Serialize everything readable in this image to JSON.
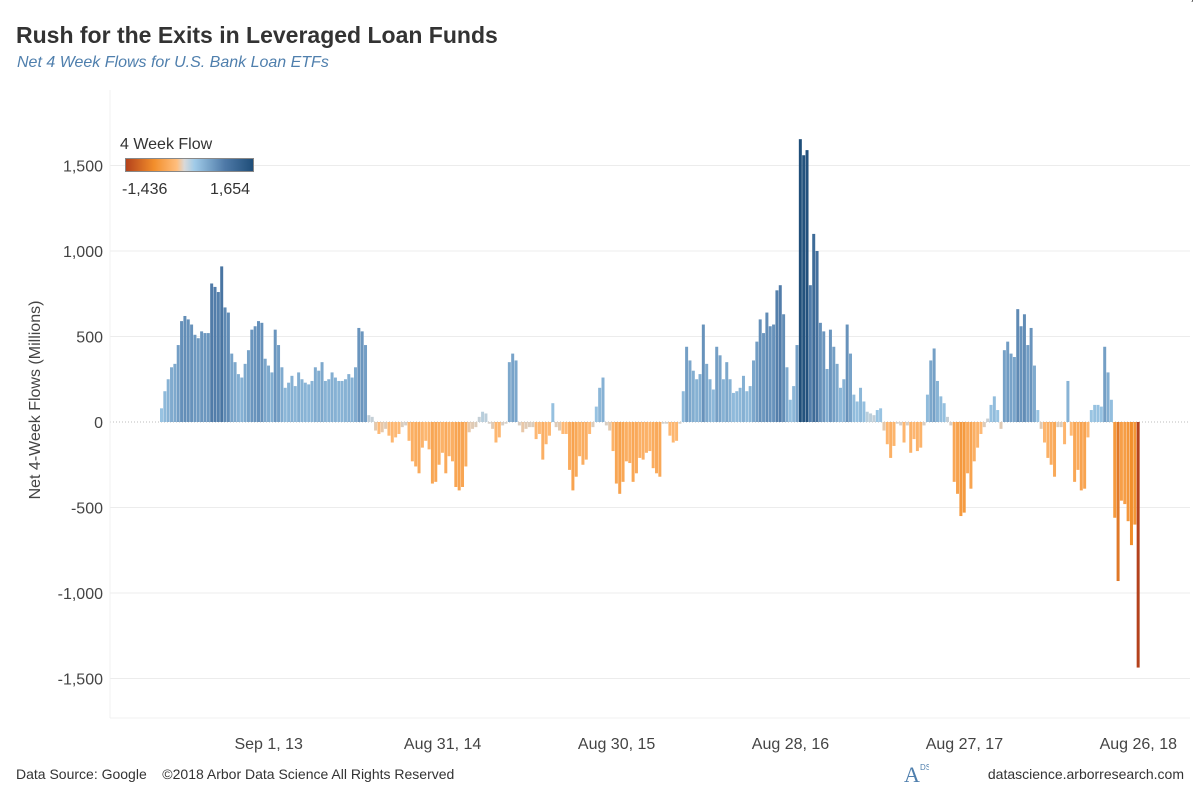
{
  "title": "Rush for the Exits in Leveraged Loan Funds",
  "subtitle": "Net 4 Week Flows for U.S. Bank Loan ETFs",
  "footer": {
    "source": "Data Source: Google    ©2018 Arbor Data Science All Rights Reserved",
    "website": "datascience.arborresearch.com",
    "logo_letters": "A",
    "logo_superscript": "DS"
  },
  "legend": {
    "title": "4 Week Flow",
    "min_label": "-1,436",
    "max_label": "1,654",
    "colors": [
      "#b4421c",
      "#f28e2b",
      "#ffbe7d",
      "#d9d9d9",
      "#a0cbe8",
      "#4e79a7",
      "#1f4e79"
    ]
  },
  "chart_data": {
    "type": "bar",
    "ylabel": "Net 4-Week Flows (Millions)",
    "ylim": [
      -1750,
      1750
    ],
    "yticks": [
      1500,
      1000,
      500,
      0,
      -500,
      -1000,
      -1500
    ],
    "ytick_labels": [
      "1,500",
      "1,000",
      "500",
      "0",
      "-500",
      "-1,000",
      "-1,500"
    ],
    "xtick_labels": [
      "Sep 1, 13",
      "Aug 31, 14",
      "Aug 30, 15",
      "Aug 28, 16",
      "Aug 27, 17",
      "Aug 26, 18"
    ],
    "xtick_index": [
      32,
      84,
      136,
      188,
      240,
      292
    ],
    "annotation": {
      "index": 310,
      "label": "-1,436"
    },
    "values": [
      80,
      180,
      250,
      320,
      340,
      450,
      590,
      620,
      600,
      570,
      510,
      490,
      530,
      520,
      520,
      810,
      790,
      760,
      910,
      670,
      640,
      400,
      350,
      280,
      260,
      340,
      420,
      540,
      560,
      590,
      580,
      370,
      330,
      290,
      540,
      450,
      320,
      200,
      230,
      270,
      210,
      290,
      250,
      230,
      220,
      240,
      320,
      300,
      350,
      240,
      250,
      290,
      260,
      240,
      240,
      250,
      280,
      260,
      320,
      550,
      530,
      450,
      40,
      30,
      -50,
      -70,
      -60,
      -40,
      -80,
      -120,
      -90,
      -70,
      -30,
      -20,
      -110,
      -230,
      -260,
      -300,
      -150,
      -110,
      -160,
      -360,
      -350,
      -250,
      -180,
      -300,
      -200,
      -230,
      -380,
      -400,
      -380,
      -260,
      -60,
      -40,
      -30,
      30,
      60,
      50,
      -10,
      -40,
      -120,
      -90,
      -20,
      -10,
      350,
      400,
      360,
      -20,
      -60,
      -40,
      -30,
      -30,
      -100,
      -70,
      -220,
      -130,
      -80,
      110,
      -30,
      -50,
      -70,
      -70,
      -280,
      -400,
      -320,
      -200,
      -250,
      -220,
      -70,
      -30,
      90,
      200,
      260,
      -20,
      -50,
      -170,
      -360,
      -420,
      -350,
      -230,
      -240,
      -350,
      -300,
      -210,
      -220,
      -180,
      -170,
      -270,
      -300,
      -320,
      -10,
      -10,
      -80,
      -120,
      -110,
      -10,
      180,
      440,
      360,
      300,
      250,
      280,
      570,
      340,
      250,
      190,
      440,
      390,
      250,
      350,
      250,
      170,
      180,
      200,
      270,
      180,
      210,
      360,
      470,
      600,
      520,
      640,
      560,
      570,
      770,
      800,
      630,
      320,
      130,
      210,
      450,
      1654,
      1560,
      1590,
      800,
      1100,
      1000,
      580,
      530,
      310,
      540,
      440,
      340,
      200,
      250,
      570,
      400,
      160,
      120,
      200,
      120,
      60,
      50,
      40,
      70,
      80,
      -50,
      -130,
      -210,
      -140,
      -10,
      -20,
      -120,
      -20,
      -180,
      -100,
      -170,
      -150,
      -20,
      160,
      360,
      430,
      240,
      150,
      110,
      30,
      -20,
      -350,
      -420,
      -550,
      -530,
      -300,
      -390,
      -230,
      -150,
      -70,
      -30,
      20,
      100,
      150,
      70,
      -40,
      420,
      470,
      400,
      380,
      660,
      560,
      630,
      450,
      550,
      330,
      70,
      -40,
      -120,
      -210,
      -250,
      -320,
      -30,
      -30,
      -130,
      240,
      -80,
      -350,
      -280,
      -400,
      -390,
      -90,
      70,
      100,
      100,
      90,
      440,
      290,
      130,
      -560,
      -930,
      -460,
      -480,
      -580,
      -720,
      -600,
      -1436
    ]
  }
}
